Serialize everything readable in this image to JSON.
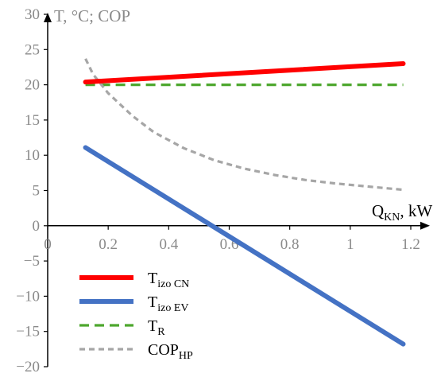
{
  "chart_data": {
    "type": "line",
    "ylabel": "T, °C; COP",
    "xlabel_main": "Q",
    "xlabel_sub": "KN",
    "xlabel_unit": ", kW",
    "xlim": [
      0,
      1.2
    ],
    "ylim": [
      -20,
      30
    ],
    "x_ticks": [
      0,
      0.2,
      0.4,
      0.6,
      0.8,
      1,
      1.2
    ],
    "x_tick_labels": [
      "0",
      "0.2",
      "0.4",
      "0.6",
      "0.8",
      "1",
      "1.2"
    ],
    "y_ticks": [
      -20,
      -15,
      -10,
      -5,
      0,
      5,
      10,
      15,
      20,
      25,
      30
    ],
    "y_tick_labels": [
      "−20",
      "−15",
      "−10",
      "−5",
      "0",
      "5",
      "10",
      "15",
      "20",
      "25",
      "30"
    ],
    "grid": false,
    "legend_position": "bottom-left",
    "series": [
      {
        "name_main": "T",
        "name_sub": "izo CN",
        "color": "#ff0000",
        "style": "solid",
        "x": [
          0.125,
          1.175
        ],
        "y": [
          20.4,
          23.0
        ]
      },
      {
        "name_main": "T",
        "name_sub": "izo EV",
        "color": "#4472c4",
        "style": "solid",
        "x": [
          0.125,
          1.175
        ],
        "y": [
          11.1,
          -16.8
        ]
      },
      {
        "name_main": "T",
        "name_sub": "R",
        "color": "#4ea72e",
        "style": "dashed",
        "x": [
          0.125,
          1.175
        ],
        "y": [
          20.0,
          20.0
        ]
      },
      {
        "name_main": "COP",
        "name_sub": "HP",
        "color": "#a6a6a6",
        "style": "dashed",
        "x": [
          0.125,
          0.15,
          0.2,
          0.28,
          0.35,
          0.45,
          0.55,
          0.65,
          0.75,
          0.85,
          0.95,
          1.05,
          1.175
        ],
        "y": [
          23.7,
          21.5,
          18.8,
          15.6,
          13.3,
          11.0,
          9.3,
          8.1,
          7.2,
          6.5,
          6.0,
          5.6,
          5.1
        ]
      }
    ]
  }
}
